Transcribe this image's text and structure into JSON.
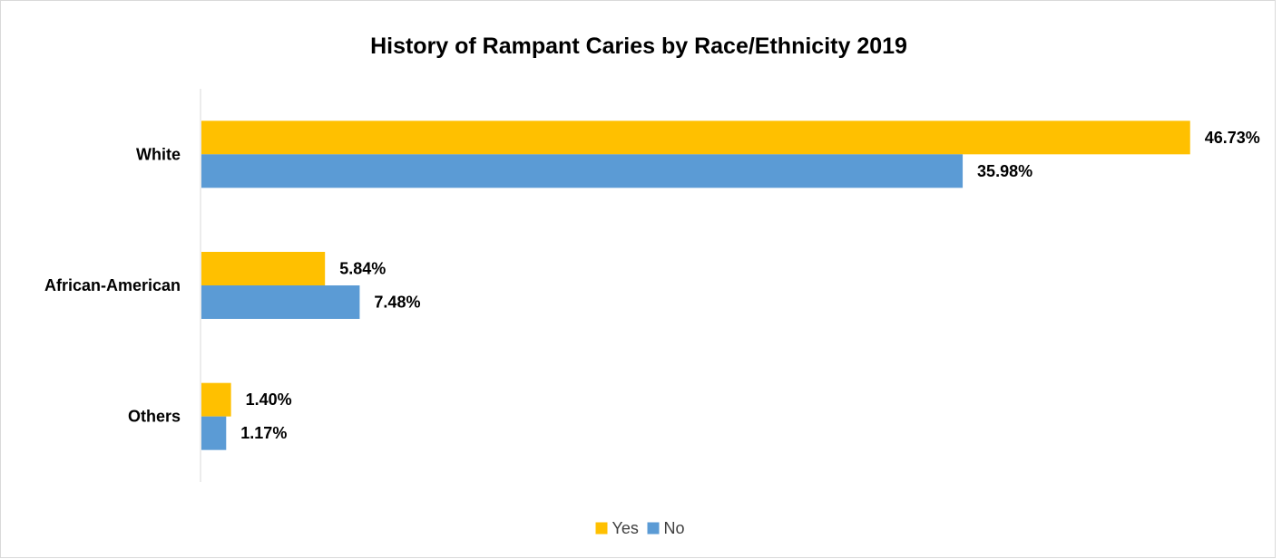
{
  "chart_data": {
    "type": "bar",
    "orientation": "horizontal",
    "title": "History of Rampant Caries by Race/Ethnicity 2019",
    "categories": [
      "White",
      "African-American",
      "Others"
    ],
    "series": [
      {
        "name": "Yes",
        "color": "#FFC000",
        "values": [
          46.73,
          5.84,
          1.4
        ],
        "labels": [
          "46.73%",
          "5.84%",
          "1.40%"
        ]
      },
      {
        "name": "No",
        "color": "#5B9BD5",
        "values": [
          35.98,
          7.48,
          1.17
        ],
        "labels": [
          "35.98%",
          "7.48%",
          "1.17%"
        ]
      }
    ],
    "value_unit": "%",
    "xlim": [
      0,
      50
    ],
    "grid": false,
    "value_axis_visible": false,
    "legend_position": "bottom",
    "axis_color": "#d9d9d9"
  }
}
